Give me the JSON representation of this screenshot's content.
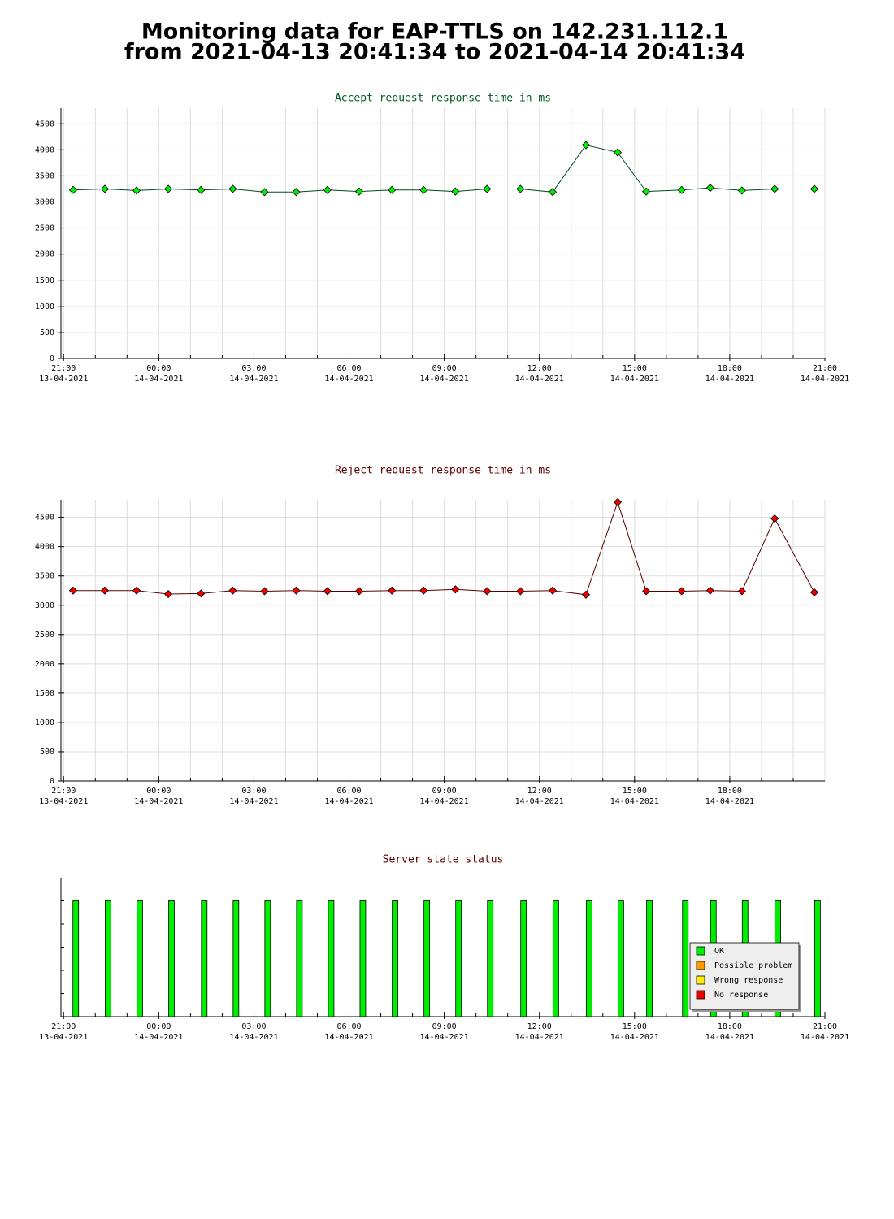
{
  "header": {
    "title": [
      "Monitoring data for EAP-TTLS on 142.231.112.1",
      "from 2021-04-13 20:41:34 to 2021-04-14 20:41:34"
    ]
  },
  "chart_data": [
    {
      "type": "line",
      "title": "Accept request response time in ms",
      "title_color": "#005a1e",
      "x": [
        "2021-04-13 21:18",
        "2021-04-13 22:18",
        "2021-04-13 23:18",
        "2021-04-14 00:18",
        "2021-04-14 01:20",
        "2021-04-14 02:20",
        "2021-04-14 03:20",
        "2021-04-14 04:20",
        "2021-04-14 05:19",
        "2021-04-14 06:19",
        "2021-04-14 07:21",
        "2021-04-14 08:21",
        "2021-04-14 09:21",
        "2021-04-14 10:21",
        "2021-04-14 11:24",
        "2021-04-14 12:25",
        "2021-04-14 13:28",
        "2021-04-14 14:28",
        "2021-04-14 15:22",
        "2021-04-14 16:29",
        "2021-04-14 17:23",
        "2021-04-14 18:23",
        "2021-04-14 19:25",
        "2021-04-14 20:40"
      ],
      "series": [
        {
          "color": "#00ee00",
          "line_color": "#004a1e",
          "values": [
            3230,
            3250,
            3220,
            3250,
            3230,
            3250,
            3190,
            3190,
            3230,
            3200,
            3230,
            3230,
            3200,
            3250,
            3250,
            3190,
            4090,
            3950,
            3200,
            3230,
            3270,
            3220,
            3250,
            3250
          ]
        }
      ],
      "xlim": [
        "2021-04-13 20:55",
        "2021-04-14 21:00"
      ],
      "xticks": [
        {
          "value": "2021-04-13 21:00",
          "label": [
            "21:00",
            "13-04-2021"
          ]
        },
        {
          "value": "2021-04-14 00:00",
          "label": [
            "00:00",
            "14-04-2021"
          ]
        },
        {
          "value": "2021-04-14 03:00",
          "label": [
            "03:00",
            "14-04-2021"
          ]
        },
        {
          "value": "2021-04-14 06:00",
          "label": [
            "06:00",
            "14-04-2021"
          ]
        },
        {
          "value": "2021-04-14 09:00",
          "label": [
            "09:00",
            "14-04-2021"
          ]
        },
        {
          "value": "2021-04-14 12:00",
          "label": [
            "12:00",
            "14-04-2021"
          ]
        },
        {
          "value": "2021-04-14 15:00",
          "label": [
            "15:00",
            "14-04-2021"
          ]
        },
        {
          "value": "2021-04-14 18:00",
          "label": [
            "18:00",
            "14-04-2021"
          ]
        },
        {
          "value": "2021-04-14 21:00",
          "label": [
            "21:00",
            "14-04-2021"
          ]
        }
      ],
      "minor_xticks": [
        "2021-04-13 22:00",
        "2021-04-13 23:00",
        "2021-04-14 01:00",
        "2021-04-14 02:00",
        "2021-04-14 04:00",
        "2021-04-14 05:00",
        "2021-04-14 07:00",
        "2021-04-14 08:00",
        "2021-04-14 10:00",
        "2021-04-14 11:00",
        "2021-04-14 13:00",
        "2021-04-14 14:00",
        "2021-04-14 16:00",
        "2021-04-14 17:00",
        "2021-04-14 19:00",
        "2021-04-14 20:00"
      ],
      "ylim": [
        0,
        4800
      ],
      "yticks": [
        0,
        500,
        1000,
        1500,
        2000,
        2500,
        3000,
        3500,
        4000,
        4500
      ],
      "grid": true
    },
    {
      "type": "line",
      "title": "Reject request response time in ms",
      "title_color": "#5a0000",
      "x": [
        "2021-04-13 21:18",
        "2021-04-13 22:18",
        "2021-04-13 23:18",
        "2021-04-14 00:18",
        "2021-04-14 01:20",
        "2021-04-14 02:20",
        "2021-04-14 03:20",
        "2021-04-14 04:20",
        "2021-04-14 05:19",
        "2021-04-14 06:19",
        "2021-04-14 07:21",
        "2021-04-14 08:21",
        "2021-04-14 09:21",
        "2021-04-14 10:21",
        "2021-04-14 11:24",
        "2021-04-14 12:25",
        "2021-04-14 13:28",
        "2021-04-14 14:28",
        "2021-04-14 15:22",
        "2021-04-14 16:29",
        "2021-04-14 17:23",
        "2021-04-14 18:23",
        "2021-04-14 19:25",
        "2021-04-14 20:40"
      ],
      "series": [
        {
          "color": "#ee0000",
          "line_color": "#5a0000",
          "values": [
            3250,
            3250,
            3250,
            3190,
            3200,
            3250,
            3240,
            3250,
            3240,
            3240,
            3250,
            3250,
            3270,
            3240,
            3240,
            3250,
            3180,
            4760,
            3240,
            3240,
            3250,
            3240,
            4480,
            3220
          ]
        }
      ],
      "xlim": [
        "2021-04-13 20:55",
        "2021-04-14 21:00"
      ],
      "xticks": [
        {
          "value": "2021-04-13 21:00",
          "label": [
            "21:00",
            "13-04-2021"
          ]
        },
        {
          "value": "2021-04-14 00:00",
          "label": [
            "00:00",
            "14-04-2021"
          ]
        },
        {
          "value": "2021-04-14 03:00",
          "label": [
            "03:00",
            "14-04-2021"
          ]
        },
        {
          "value": "2021-04-14 06:00",
          "label": [
            "06:00",
            "14-04-2021"
          ]
        },
        {
          "value": "2021-04-14 09:00",
          "label": [
            "09:00",
            "14-04-2021"
          ]
        },
        {
          "value": "2021-04-14 12:00",
          "label": [
            "12:00",
            "14-04-2021"
          ]
        },
        {
          "value": "2021-04-14 15:00",
          "label": [
            "15:00",
            "14-04-2021"
          ]
        },
        {
          "value": "2021-04-14 18:00",
          "label": [
            "18:00",
            "14-04-2021"
          ]
        }
      ],
      "minor_xticks": [
        "2021-04-13 22:00",
        "2021-04-13 23:00",
        "2021-04-14 01:00",
        "2021-04-14 02:00",
        "2021-04-14 04:00",
        "2021-04-14 05:00",
        "2021-04-14 07:00",
        "2021-04-14 08:00",
        "2021-04-14 10:00",
        "2021-04-14 11:00",
        "2021-04-14 13:00",
        "2021-04-14 14:00",
        "2021-04-14 16:00",
        "2021-04-14 17:00",
        "2021-04-14 19:00",
        "2021-04-14 20:00"
      ],
      "ylim": [
        0,
        4800
      ],
      "yticks": [
        0,
        500,
        1000,
        1500,
        2000,
        2500,
        3000,
        3500,
        4000,
        4500
      ],
      "grid": true
    },
    {
      "type": "status",
      "title": "Server state status",
      "title_color": "#5a0000",
      "x": [
        "2021-04-13 21:23",
        "2021-04-13 22:24",
        "2021-04-13 23:24",
        "2021-04-14 00:24",
        "2021-04-14 01:26",
        "2021-04-14 02:26",
        "2021-04-14 03:26",
        "2021-04-14 04:26",
        "2021-04-14 05:26",
        "2021-04-14 06:26",
        "2021-04-14 07:27",
        "2021-04-14 08:27",
        "2021-04-14 09:27",
        "2021-04-14 10:27",
        "2021-04-14 11:30",
        "2021-04-14 12:31",
        "2021-04-14 13:34",
        "2021-04-14 14:34",
        "2021-04-14 15:28",
        "2021-04-14 16:36",
        "2021-04-14 17:29",
        "2021-04-14 18:29",
        "2021-04-14 19:31",
        "2021-04-14 20:46"
      ],
      "values": [
        "OK",
        "OK",
        "OK",
        "OK",
        "OK",
        "OK",
        "OK",
        "OK",
        "OK",
        "OK",
        "OK",
        "OK",
        "OK",
        "OK",
        "OK",
        "OK",
        "OK",
        "OK",
        "OK",
        "OK",
        "OK",
        "OK",
        "OK",
        "OK"
      ],
      "states": [
        {
          "name": "OK",
          "color": "#00ee00"
        },
        {
          "name": "Possible problem",
          "color": "#ff9900"
        },
        {
          "name": "Wrong response",
          "color": "#ffee00"
        },
        {
          "name": "No response",
          "color": "#ee0000"
        }
      ],
      "legend": "lower right",
      "xlim": [
        "2021-04-13 20:55",
        "2021-04-14 21:00"
      ],
      "xticks": [
        {
          "value": "2021-04-13 21:00",
          "label": [
            "21:00",
            "13-04-2021"
          ]
        },
        {
          "value": "2021-04-14 00:00",
          "label": [
            "00:00",
            "14-04-2021"
          ]
        },
        {
          "value": "2021-04-14 03:00",
          "label": [
            "03:00",
            "14-04-2021"
          ]
        },
        {
          "value": "2021-04-14 06:00",
          "label": [
            "06:00",
            "14-04-2021"
          ]
        },
        {
          "value": "2021-04-14 09:00",
          "label": [
            "09:00",
            "14-04-2021"
          ]
        },
        {
          "value": "2021-04-14 12:00",
          "label": [
            "12:00",
            "14-04-2021"
          ]
        },
        {
          "value": "2021-04-14 15:00",
          "label": [
            "15:00",
            "14-04-2021"
          ]
        },
        {
          "value": "2021-04-14 18:00",
          "label": [
            "18:00",
            "14-04-2021"
          ]
        },
        {
          "value": "2021-04-14 21:00",
          "label": [
            "21:00",
            "14-04-2021"
          ]
        }
      ],
      "minor_xticks": [
        "2021-04-13 22:00",
        "2021-04-13 23:00",
        "2021-04-14 01:00",
        "2021-04-14 02:00",
        "2021-04-14 04:00",
        "2021-04-14 05:00",
        "2021-04-14 07:00",
        "2021-04-14 08:00",
        "2021-04-14 10:00",
        "2021-04-14 11:00",
        "2021-04-14 13:00",
        "2021-04-14 14:00",
        "2021-04-14 16:00",
        "2021-04-14 17:00",
        "2021-04-14 19:00",
        "2021-04-14 20:00"
      ]
    }
  ]
}
